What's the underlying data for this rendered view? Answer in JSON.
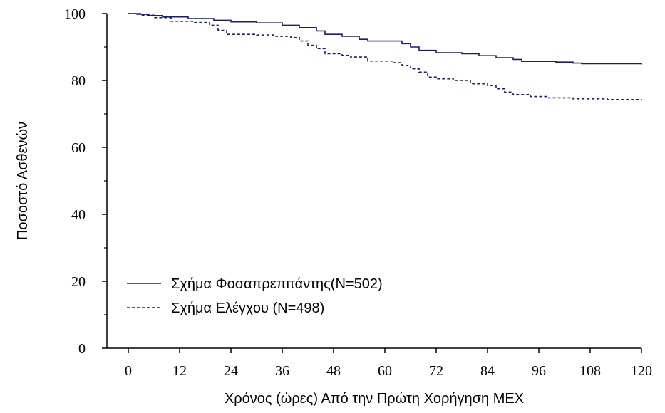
{
  "chart_data": {
    "type": "line",
    "step": "post",
    "xlabel": "Χρόνος (ώρες) Από την Πρώτη Χορήγηση ΜΕΧ",
    "ylabel": "Ποσοστό Ασθενών",
    "xlim": [
      -5,
      120
    ],
    "ylim": [
      0,
      100
    ],
    "xticks": [
      0,
      12,
      24,
      36,
      48,
      60,
      72,
      84,
      96,
      108,
      120
    ],
    "yticks": [
      0,
      20,
      40,
      60,
      80,
      100
    ],
    "yminorticks": [
      10,
      30,
      50,
      70,
      90
    ],
    "legend": "lower-left",
    "series": [
      {
        "name": "Σχήμα Φοσαπρεπιτάντης(N=502)",
        "color": "#1c1c6b",
        "style": "solid",
        "x": [
          0,
          2,
          5,
          8,
          14,
          20,
          24,
          30,
          36,
          40,
          44,
          46,
          50,
          54,
          56,
          62,
          64,
          66,
          68,
          72,
          78,
          82,
          86,
          90,
          92,
          100,
          104,
          106,
          120
        ],
        "values": [
          100,
          99.8,
          99.4,
          99,
          98.5,
          98,
          97.5,
          97.2,
          96.5,
          95.8,
          94.8,
          93.8,
          93.2,
          92.3,
          91.8,
          91.8,
          91,
          90,
          89,
          88.3,
          88,
          87.4,
          86.8,
          86.3,
          85.7,
          85.5,
          85.2,
          85,
          84.8
        ]
      },
      {
        "name": "Σχήμα Ελέγχου (N=498)",
        "color": "#1c1c6b",
        "style": "dashed",
        "x": [
          0,
          3,
          6,
          10,
          15,
          19,
          21,
          23,
          30,
          34,
          38,
          40,
          42,
          44,
          46,
          50,
          52,
          56,
          62,
          64,
          66,
          68,
          70,
          72,
          76,
          80,
          84,
          86,
          88,
          90,
          94,
          98,
          104,
          112,
          120
        ],
        "values": [
          100,
          99.5,
          98.8,
          97.7,
          97.3,
          96.5,
          95,
          93.8,
          93.6,
          93.2,
          92.8,
          91.8,
          90.5,
          89.5,
          88,
          87.5,
          87,
          85.8,
          85.3,
          84.5,
          83.5,
          82.5,
          81,
          80.5,
          80,
          79,
          78.5,
          77.5,
          76.5,
          75.8,
          75.2,
          74.8,
          74.5,
          74.3,
          74.2
        ]
      }
    ]
  }
}
